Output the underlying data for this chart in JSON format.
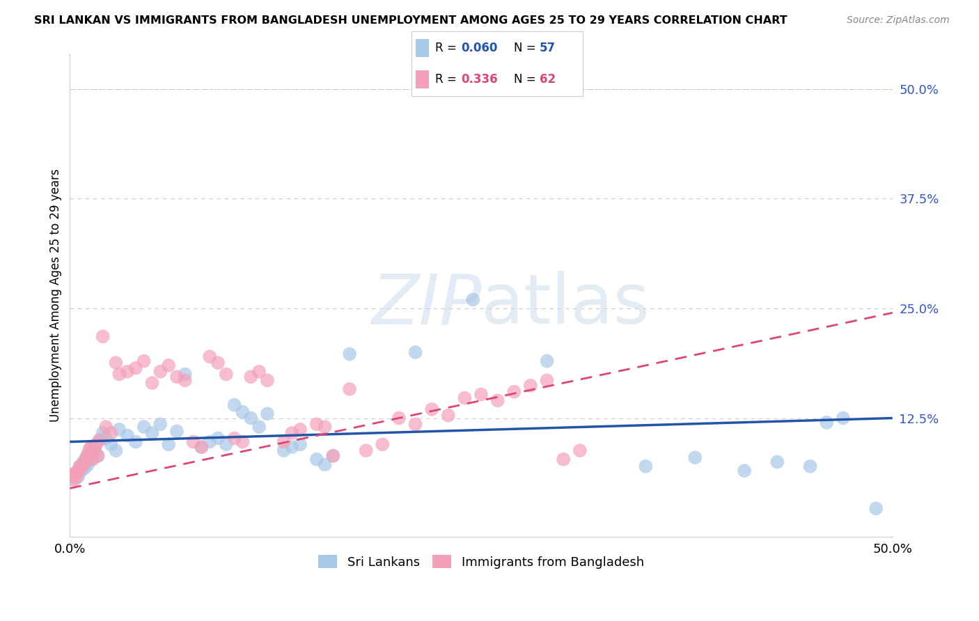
{
  "title": "SRI LANKAN VS IMMIGRANTS FROM BANGLADESH UNEMPLOYMENT AMONG AGES 25 TO 29 YEARS CORRELATION CHART",
  "source": "Source: ZipAtlas.com",
  "ylabel": "Unemployment Among Ages 25 to 29 years",
  "R_blue": 0.06,
  "N_blue": 57,
  "R_pink": 0.336,
  "N_pink": 62,
  "blue_color": "#a8c8e8",
  "pink_color": "#f4a0b8",
  "blue_line_color": "#2255aa",
  "pink_line_color": "#dd4477",
  "background_color": "#ffffff",
  "xrange": [
    0,
    0.5
  ],
  "yrange": [
    -0.01,
    0.54
  ],
  "yticks": [
    0.125,
    0.25,
    0.375,
    0.5
  ],
  "ytick_labels": [
    "12.5%",
    "25.0%",
    "37.5%",
    "50.0%"
  ],
  "blue_line_start_y": 0.098,
  "blue_line_end_y": 0.125,
  "pink_line_start_y": 0.045,
  "pink_line_end_y": 0.245,
  "blue_x": [
    0.002,
    0.003,
    0.004,
    0.005,
    0.006,
    0.007,
    0.008,
    0.009,
    0.01,
    0.011,
    0.012,
    0.013,
    0.014,
    0.015,
    0.016,
    0.017,
    0.018,
    0.02,
    0.022,
    0.025,
    0.028,
    0.03,
    0.035,
    0.04,
    0.045,
    0.05,
    0.055,
    0.06,
    0.065,
    0.07,
    0.08,
    0.085,
    0.09,
    0.095,
    0.1,
    0.105,
    0.11,
    0.115,
    0.12,
    0.13,
    0.135,
    0.14,
    0.15,
    0.155,
    0.16,
    0.17,
    0.21,
    0.245,
    0.29,
    0.35,
    0.38,
    0.41,
    0.43,
    0.45,
    0.46,
    0.47,
    0.49
  ],
  "blue_y": [
    0.06,
    0.055,
    0.062,
    0.058,
    0.07,
    0.065,
    0.075,
    0.068,
    0.08,
    0.072,
    0.085,
    0.078,
    0.09,
    0.088,
    0.095,
    0.082,
    0.1,
    0.108,
    0.102,
    0.095,
    0.088,
    0.112,
    0.105,
    0.098,
    0.115,
    0.108,
    0.118,
    0.095,
    0.11,
    0.175,
    0.092,
    0.098,
    0.102,
    0.095,
    0.14,
    0.132,
    0.125,
    0.115,
    0.13,
    0.088,
    0.092,
    0.095,
    0.078,
    0.072,
    0.082,
    0.198,
    0.2,
    0.26,
    0.19,
    0.07,
    0.08,
    0.065,
    0.075,
    0.07,
    0.12,
    0.125,
    0.022
  ],
  "pink_x": [
    0.001,
    0.002,
    0.003,
    0.004,
    0.005,
    0.006,
    0.007,
    0.008,
    0.009,
    0.01,
    0.011,
    0.012,
    0.013,
    0.014,
    0.015,
    0.016,
    0.017,
    0.018,
    0.02,
    0.022,
    0.025,
    0.028,
    0.03,
    0.035,
    0.04,
    0.045,
    0.05,
    0.055,
    0.06,
    0.065,
    0.07,
    0.075,
    0.08,
    0.085,
    0.09,
    0.095,
    0.1,
    0.105,
    0.11,
    0.115,
    0.12,
    0.13,
    0.135,
    0.14,
    0.15,
    0.155,
    0.16,
    0.17,
    0.18,
    0.19,
    0.2,
    0.21,
    0.22,
    0.23,
    0.24,
    0.25,
    0.26,
    0.27,
    0.28,
    0.29,
    0.3,
    0.31
  ],
  "pink_y": [
    0.06,
    0.055,
    0.062,
    0.058,
    0.065,
    0.07,
    0.068,
    0.072,
    0.075,
    0.08,
    0.085,
    0.09,
    0.092,
    0.078,
    0.088,
    0.095,
    0.082,
    0.1,
    0.218,
    0.115,
    0.108,
    0.188,
    0.175,
    0.178,
    0.182,
    0.19,
    0.165,
    0.178,
    0.185,
    0.172,
    0.168,
    0.098,
    0.092,
    0.195,
    0.188,
    0.175,
    0.102,
    0.098,
    0.172,
    0.178,
    0.168,
    0.098,
    0.108,
    0.112,
    0.118,
    0.115,
    0.082,
    0.158,
    0.088,
    0.095,
    0.125,
    0.118,
    0.135,
    0.128,
    0.148,
    0.152,
    0.145,
    0.155,
    0.162,
    0.168,
    0.078,
    0.088
  ]
}
